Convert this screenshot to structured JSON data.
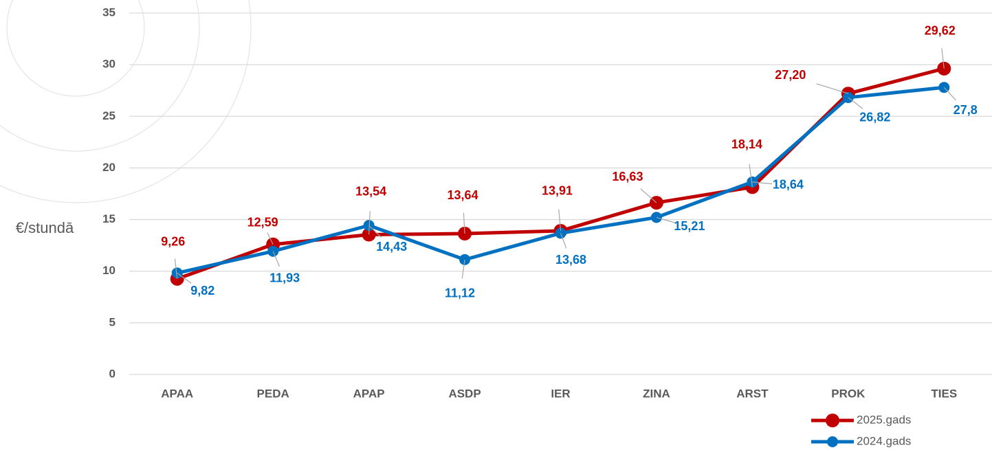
{
  "chart_data": {
    "type": "line",
    "y_label": "€/stundā",
    "categories": [
      "APAA",
      "PEDA",
      "APAP",
      "ASDP",
      "IER",
      "ZINA",
      "ARST",
      "PROK",
      "TIES"
    ],
    "series": [
      {
        "name": "2025.gads",
        "color": "#c00000",
        "values": [
          9.26,
          12.59,
          13.54,
          13.64,
          13.91,
          16.63,
          18.14,
          27.2,
          29.62
        ],
        "value_labels": [
          "9,26",
          "12,59",
          "13,54",
          "13,64",
          "13,91",
          "16,63",
          "18,14",
          "27,20",
          "29,62"
        ]
      },
      {
        "name": "2024.gads",
        "color": "#0070c0",
        "values": [
          9.82,
          11.93,
          14.43,
          11.12,
          13.68,
          15.21,
          18.64,
          26.82,
          27.8
        ],
        "value_labels": [
          "9,82",
          "11,93",
          "14,43",
          "11,12",
          "13,68",
          "15,21",
          "18,64",
          "26,82",
          "27,8"
        ]
      }
    ],
    "ylim": [
      0,
      35
    ],
    "yticks": [
      0,
      5,
      10,
      15,
      20,
      25,
      30,
      35
    ],
    "grid": true
  }
}
